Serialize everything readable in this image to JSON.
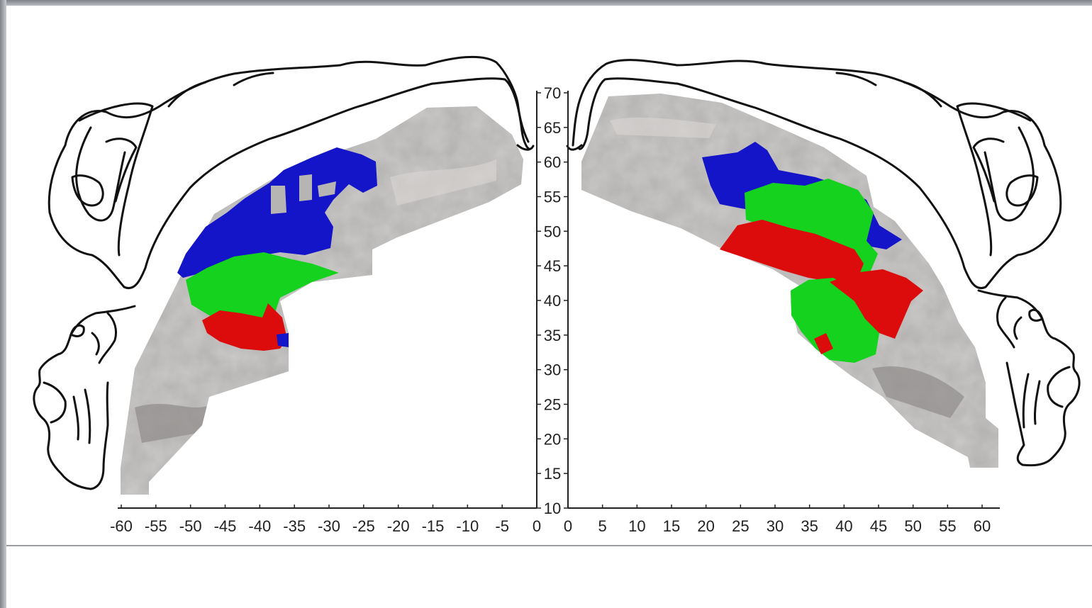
{
  "axes": {
    "left_x_ticks": [
      "-60",
      "-55",
      "-50",
      "-45",
      "-40",
      "-35",
      "-30",
      "-25",
      "-20",
      "-15",
      "-10",
      "-5",
      "0"
    ],
    "right_x_ticks": [
      "0",
      "5",
      "10",
      "15",
      "20",
      "25",
      "30",
      "35",
      "40",
      "45",
      "50",
      "55",
      "60"
    ],
    "y_ticks": [
      "10",
      "15",
      "20",
      "25",
      "30",
      "35",
      "40",
      "45",
      "50",
      "55",
      "60",
      "65",
      "70"
    ],
    "x_range_left": [
      -60,
      0
    ],
    "x_range_right": [
      0,
      60
    ],
    "y_range": [
      10,
      70
    ]
  },
  "colors": {
    "cortex": "#b7b5b3",
    "cortex_dark": "#8e8c8a",
    "region_blue": "#1414c8",
    "region_green": "#14d21e",
    "region_red": "#dc0c0c",
    "outline": "#111111",
    "frame": "#9a9da2"
  },
  "icons": {
    "left_sketch": "lying-figure-sketch",
    "right_sketch": "lying-figure-sketch",
    "left_head": "screaming-head-sketch",
    "right_head": "screaming-head-sketch"
  }
}
